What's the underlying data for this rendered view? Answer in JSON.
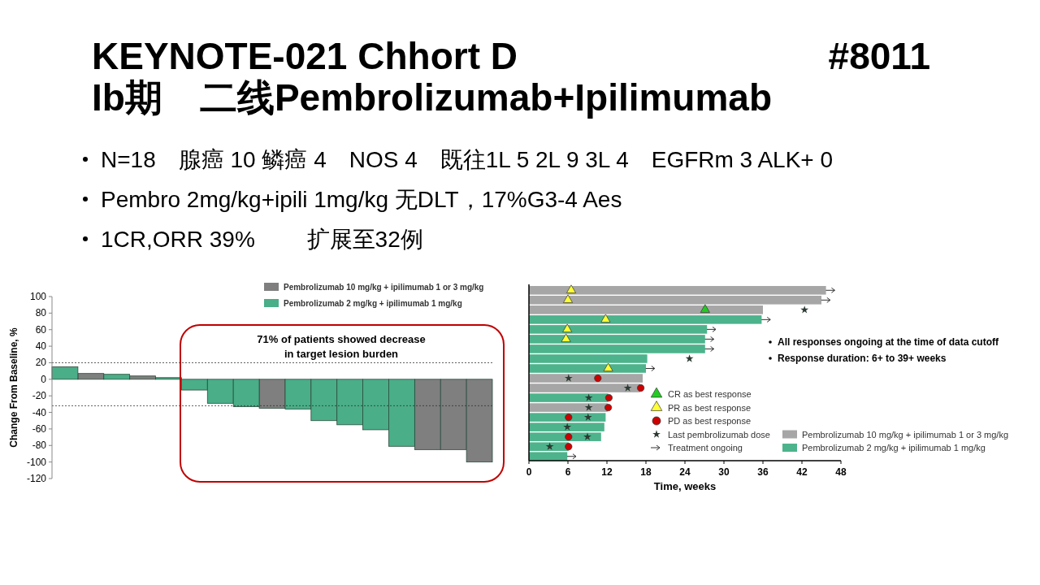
{
  "chart_data": [
    {
      "type": "other",
      "title": "KEYNOTE-021 Chhort D",
      "subtitle": "Ib期　二线Pembrolizumab+Ipilimumab",
      "annotations": [
        "#8011",
        "N=18　腺癌 10  鳞癌 4　NOS 4　既往1L 5  2L 9  3L 4　EGFRm 3 ALK+ 0",
        "Pembro 2mg/kg+ipili 1mg/kg  无DLT，17%G3-4 Aes",
        "1CR,ORR 39%　　 扩展至32例"
      ]
    },
    {
      "type": "bar",
      "stacked": true,
      "ylabel": "Change From Baseline, %",
      "categories": [
        null,
        null,
        null,
        null,
        null,
        null,
        null,
        null,
        null,
        null,
        null,
        null,
        null,
        null,
        null,
        null,
        null
      ],
      "series": [
        {
          "name": "Pembrolizumab 10 mg/kg + ipilimumab 1 or 3 mg/kg",
          "color": "#7f7f7f",
          "values": [
            null,
            7,
            null,
            4,
            null,
            null,
            null,
            null,
            -35,
            null,
            null,
            null,
            null,
            null,
            -85,
            -85,
            -100
          ]
        },
        {
          "name": "Pembrolizumab 2 mg/kg + ipilimumab 1 mg/kg",
          "color": "#4aae88",
          "values": [
            15,
            null,
            6,
            null,
            2,
            -13,
            -29,
            -33,
            null,
            -36,
            -50,
            -55,
            -61,
            -81,
            null,
            null,
            null
          ]
        }
      ],
      "ylim": [
        -120,
        100
      ],
      "yticks": [
        -120,
        -100,
        -80,
        -60,
        -40,
        -20,
        0,
        20,
        40,
        60,
        80,
        100
      ],
      "tick_labels": "y",
      "legend": "top right",
      "ref_lines": [
        {
          "axis": "y",
          "value": 20,
          "line_style": "dotted"
        },
        {
          "axis": "y",
          "value": -32,
          "line_style": "dotted"
        }
      ],
      "annotations": [
        "71% of patients showed decrease\nin target lesion burden"
      ]
    },
    {
      "type": "bar",
      "orientation": "horizontal",
      "stacked": true,
      "xlabel": "Time, weeks",
      "categories": [
        null,
        null,
        null,
        null,
        null,
        null,
        null,
        null,
        null,
        null,
        null,
        null,
        null,
        null,
        null,
        null,
        null,
        null
      ],
      "series": [
        {
          "name": "CR as best response",
          "type": "scatter",
          "marker": "triangle",
          "color": "#22cc22",
          "values": [
            null,
            null,
            27.1,
            null,
            null,
            null,
            null,
            null,
            null,
            null,
            null,
            null,
            null,
            null,
            null,
            null,
            null,
            null
          ]
        },
        {
          "name": "PR as best response",
          "type": "scatter",
          "marker": "triangle",
          "color": "#ffff33",
          "values": [
            6.5,
            6.0,
            null,
            11.8,
            5.9,
            5.7,
            null,
            null,
            12.2,
            null,
            null,
            null,
            null,
            null,
            null,
            null,
            null,
            null
          ]
        },
        {
          "name": "PD as best response",
          "type": "scatter",
          "marker": "circle",
          "color": "#cc0000",
          "values": [
            null,
            null,
            null,
            null,
            null,
            null,
            null,
            null,
            null,
            10.6,
            17.2,
            12.3,
            12.2,
            6.1,
            null,
            6.1,
            6.1,
            null
          ]
        },
        {
          "name": "Last pembrolizumab dose",
          "type": "scatter",
          "marker": "star",
          "color": "#2b3a32",
          "values": [
            null,
            null,
            42.4,
            null,
            null,
            null,
            null,
            24.7,
            null,
            6.1,
            15.2,
            9.2,
            9.2,
            9.1,
            5.9,
            9.0,
            3.2,
            null
          ]
        },
        {
          "name": "Treatment ongoing",
          "type": "scatter",
          "color": "#333333",
          "values": [
            46.8,
            46.1,
            null,
            36.9,
            28.5,
            28.2,
            28.2,
            null,
            19.1,
            null,
            null,
            null,
            null,
            null,
            null,
            null,
            null,
            7.0
          ]
        },
        {
          "name": "Pembrolizumab 10 mg/kg + ipilimumab 1 or 3 mg/kg",
          "color": "#a6a6a6",
          "values": [
            45.7,
            45.0,
            36.0,
            null,
            null,
            null,
            null,
            null,
            null,
            17.5,
            17.1,
            null,
            12.1,
            null,
            null,
            null,
            null,
            null
          ]
        },
        {
          "name": "Pembrolizumab 2 mg/kg + ipilimumab 1 mg/kg",
          "color": "#4db38c",
          "values": [
            null,
            null,
            null,
            35.8,
            27.4,
            27.1,
            27.1,
            18.2,
            18.0,
            null,
            null,
            12.2,
            null,
            11.8,
            11.6,
            11.1,
            6.1,
            5.9
          ]
        }
      ],
      "xlim": [
        0,
        48
      ],
      "xticks": [
        0,
        6,
        12,
        18,
        24,
        30,
        36,
        42,
        48
      ],
      "tick_labels": "x",
      "legend": "bottom right",
      "annotations": [
        "All responses ongoing at the time of data cutoff",
        "Response duration: 6+ to 39+ weeks"
      ]
    }
  ]
}
